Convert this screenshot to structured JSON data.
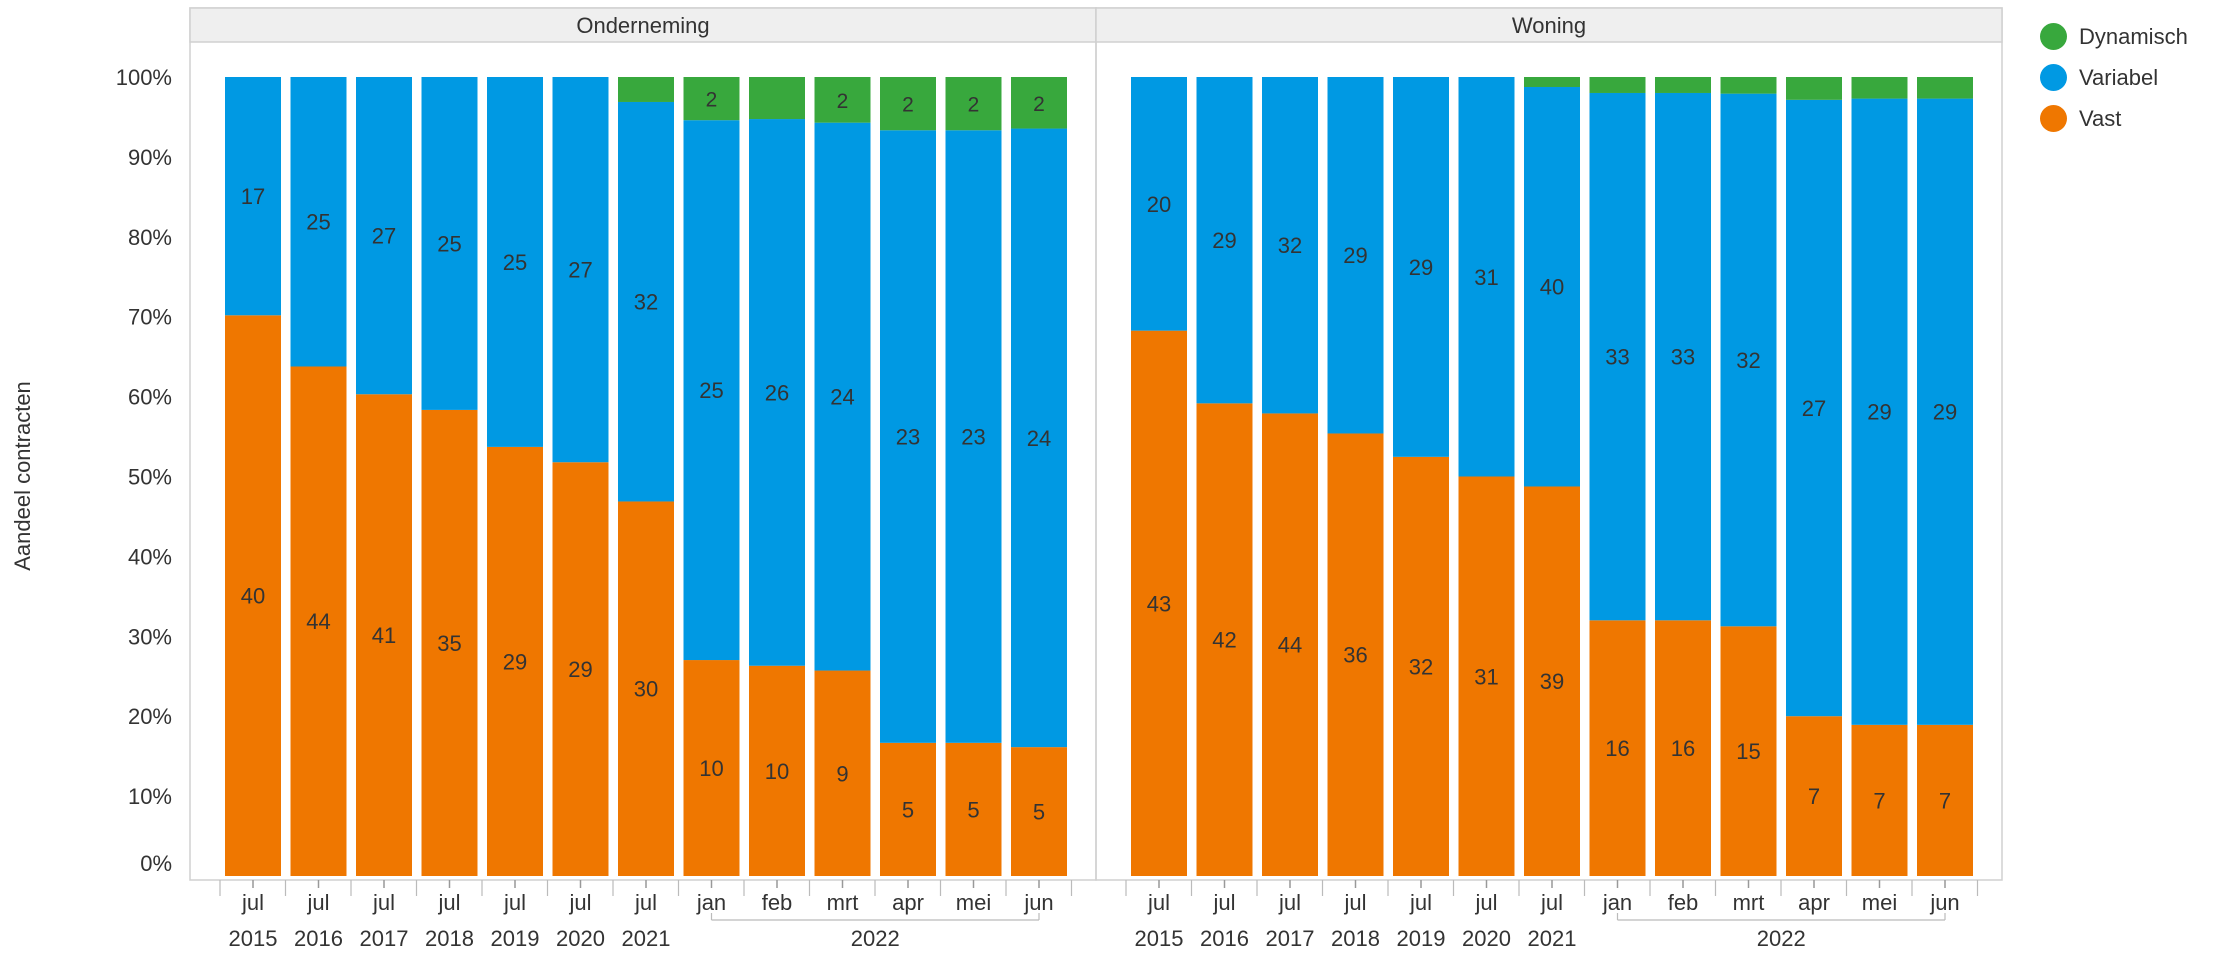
{
  "chart_data": {
    "type": "bar",
    "stacked": true,
    "normalized": true,
    "ylabel": "Aandeel contracten",
    "yticks": [
      "0%",
      "10%",
      "20%",
      "30%",
      "40%",
      "50%",
      "60%",
      "70%",
      "80%",
      "90%",
      "100%"
    ],
    "ylim": [
      0,
      100
    ],
    "grid": false,
    "legend_position": "top-right",
    "legend": [
      {
        "name": "Dynamisch",
        "color": "#38a83d"
      },
      {
        "name": "Variabel",
        "color": "#0099e3"
      },
      {
        "name": "Vast",
        "color": "#ef7700"
      }
    ],
    "categories": [
      {
        "month": "jul",
        "year": "2015"
      },
      {
        "month": "jul",
        "year": "2016"
      },
      {
        "month": "jul",
        "year": "2017"
      },
      {
        "month": "jul",
        "year": "2018"
      },
      {
        "month": "jul",
        "year": "2019"
      },
      {
        "month": "jul",
        "year": "2020"
      },
      {
        "month": "jul",
        "year": "2021"
      },
      {
        "month": "jan",
        "year": "2022"
      },
      {
        "month": "feb",
        "year": "2022"
      },
      {
        "month": "mrt",
        "year": "2022"
      },
      {
        "month": "apr",
        "year": "2022"
      },
      {
        "month": "mei",
        "year": "2022"
      },
      {
        "month": "jun",
        "year": "2022"
      }
    ],
    "year_labels": [
      "2015",
      "2016",
      "2017",
      "2018",
      "2019",
      "2020",
      "2021",
      "2022"
    ],
    "panels": [
      {
        "title": "Onderneming",
        "series": [
          {
            "name": "Vast",
            "values": [
              40,
              44,
              41,
              35,
              29,
              29,
              30,
              10,
              10,
              9,
              5,
              5,
              5
            ]
          },
          {
            "name": "Variabel",
            "values": [
              17,
              25,
              27,
              25,
              25,
              27,
              32,
              25,
              26,
              24,
              23,
              23,
              24
            ]
          },
          {
            "name": "Dynamisch",
            "values": [
              0,
              0,
              0,
              0,
              0,
              0,
              2,
              2,
              2,
              2,
              2,
              2,
              2
            ]
          }
        ],
        "dynamisch_labels": [
          "",
          "",
          "",
          "",
          "",
          "",
          "",
          "2",
          "",
          "2",
          "2",
          "2",
          "2"
        ]
      },
      {
        "title": "Woning",
        "series": [
          {
            "name": "Vast",
            "values": [
              43,
              42,
              44,
              36,
              32,
              31,
              39,
              16,
              16,
              15,
              7,
              7,
              7
            ]
          },
          {
            "name": "Variabel",
            "values": [
              20,
              29,
              32,
              29,
              29,
              31,
              40,
              33,
              33,
              32,
              27,
              29,
              29
            ]
          },
          {
            "name": "Dynamisch",
            "values": [
              0,
              0,
              0,
              0,
              0,
              0,
              1,
              1,
              1,
              1,
              1,
              1,
              1
            ]
          }
        ],
        "dynamisch_labels": [
          "",
          "",
          "",
          "",
          "",
          "",
          "",
          "",
          "",
          "",
          "",
          "",
          ""
        ]
      }
    ]
  }
}
